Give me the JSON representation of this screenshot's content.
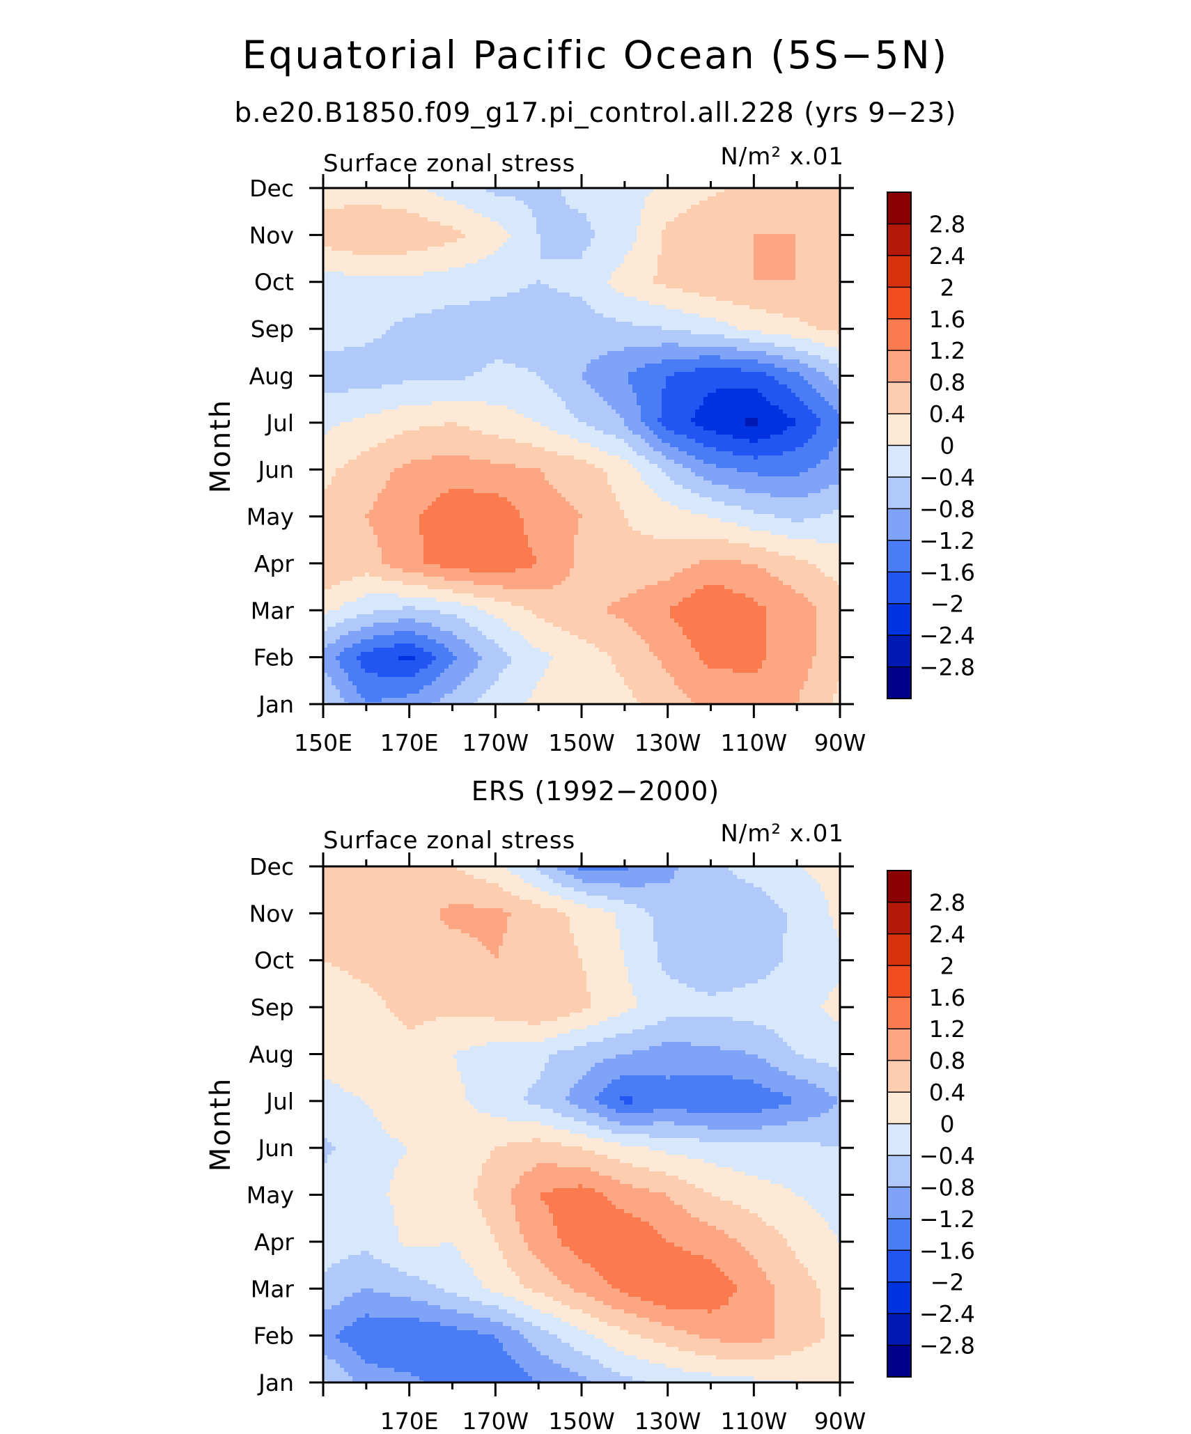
{
  "title": "Equatorial Pacific Ocean (5S−5N)",
  "subtitle": "b.e20.B1850.f09_g17.pi_control.all.228 (yrs 9−23)",
  "colorbar": {
    "levels": [
      -2.8,
      -2.4,
      -2,
      -1.6,
      -1.2,
      -0.8,
      -0.4,
      0,
      0.4,
      0.8,
      1.2,
      1.6,
      2,
      2.4,
      2.8
    ],
    "labels": [
      "2.8",
      "2.4",
      "2",
      "1.6",
      "1.2",
      "0.8",
      "0.4",
      "0",
      "−0.4",
      "−0.8",
      "−1.2",
      "−1.6",
      "−2",
      "−2.4",
      "−2.8"
    ],
    "colors": [
      "#00008b",
      "#0019b2",
      "#0033e0",
      "#2156f2",
      "#4a7cf5",
      "#7fa3f7",
      "#b0c9fa",
      "#d8e8fc",
      "#fee8d6",
      "#fecdb0",
      "#fda683",
      "#fb7a4e",
      "#f24d20",
      "#d7300c",
      "#b3180a",
      "#8b0000"
    ]
  },
  "chart_data": [
    {
      "type": "heatmap",
      "panel_title": "Surface zonal stress",
      "units": "N/m² x.01",
      "ylabel": "Month",
      "x_labels": [
        "150E",
        "170E",
        "170W",
        "150W",
        "130W",
        "110W",
        "90W"
      ],
      "y_labels": [
        "Jan",
        "Feb",
        "Mar",
        "Apr",
        "May",
        "Jun",
        "Jul",
        "Aug",
        "Sep",
        "Oct",
        "Nov",
        "Dec"
      ],
      "x_lon": [
        150,
        160,
        170,
        180,
        190,
        200,
        210,
        220,
        230,
        240,
        250,
        260,
        270
      ],
      "values": [
        [
          -0.3,
          -1.2,
          -1.0,
          -0.6,
          -0.2,
          0.1,
          0.2,
          0.3,
          0.6,
          0.9,
          1.0,
          0.8,
          0.3
        ],
        [
          -1.0,
          -1.8,
          -2.1,
          -1.3,
          -0.6,
          -0.1,
          0.2,
          0.5,
          0.9,
          1.3,
          1.3,
          1.0,
          0.5
        ],
        [
          0.1,
          -0.3,
          -0.5,
          -0.3,
          0.1,
          0.5,
          0.7,
          0.9,
          1.2,
          1.6,
          1.3,
          1.0,
          0.6
        ],
        [
          0.8,
          0.6,
          1.1,
          1.4,
          1.5,
          1.2,
          0.7,
          0.5,
          0.6,
          0.9,
          0.8,
          0.5,
          0.2
        ],
        [
          0.5,
          0.8,
          1.1,
          1.5,
          1.5,
          1.0,
          0.8,
          0.4,
          0.2,
          0.0,
          -0.3,
          -0.5,
          -0.3
        ],
        [
          0.3,
          0.6,
          0.9,
          1.0,
          0.9,
          0.8,
          0.6,
          0.2,
          -0.5,
          -1.1,
          -1.3,
          -1.3,
          -1.0
        ],
        [
          -0.1,
          0.1,
          0.3,
          0.4,
          0.2,
          0.0,
          -0.4,
          -0.8,
          -1.8,
          -2.2,
          -2.5,
          -2.0,
          -1.3
        ],
        [
          -0.6,
          -0.6,
          -0.5,
          -0.5,
          -0.3,
          -0.4,
          -0.8,
          -1.2,
          -1.6,
          -1.9,
          -1.8,
          -1.3,
          -0.6
        ],
        [
          -0.2,
          -0.3,
          -0.5,
          -0.6,
          -0.6,
          -0.6,
          -0.6,
          -0.5,
          -0.4,
          -0.2,
          0.1,
          0.3,
          0.5
        ],
        [
          -0.2,
          -0.1,
          -0.1,
          -0.2,
          -0.3,
          -0.4,
          -0.3,
          0.2,
          0.5,
          0.7,
          0.8,
          0.8,
          0.7
        ],
        [
          0.6,
          0.8,
          0.7,
          0.5,
          0.2,
          -0.4,
          -0.5,
          -0.2,
          0.5,
          0.8,
          0.8,
          0.8,
          0.8
        ],
        [
          0.2,
          0.2,
          0.1,
          -0.2,
          -0.5,
          -0.5,
          -0.3,
          -0.2,
          0.1,
          0.3,
          0.6,
          0.6,
          0.6
        ]
      ],
      "value_range": [
        -3,
        3
      ]
    },
    {
      "type": "heatmap",
      "chart_title": "ERS (1992−2000)",
      "panel_title": "Surface zonal stress",
      "units": "N/m² x.01",
      "ylabel": "Month",
      "x_labels": [
        "170E",
        "170W",
        "150W",
        "130W",
        "110W",
        "90W"
      ],
      "y_labels": [
        "Jan",
        "Feb",
        "Mar",
        "Apr",
        "May",
        "Jun",
        "Jul",
        "Aug",
        "Sep",
        "Oct",
        "Nov",
        "Dec"
      ],
      "x_lon": [
        150,
        160,
        170,
        180,
        190,
        200,
        210,
        220,
        230,
        240,
        250,
        260,
        270
      ],
      "values": [
        [
          -0.3,
          -1.0,
          -1.1,
          -1.4,
          -1.6,
          -1.2,
          -0.9,
          -0.5,
          -0.3,
          -0.2,
          -0.1,
          0.0,
          0.1
        ],
        [
          -1.1,
          -1.5,
          -1.6,
          -1.4,
          -1.2,
          -0.6,
          -0.1,
          0.3,
          0.6,
          0.9,
          1.0,
          0.6,
          0.3
        ],
        [
          -0.5,
          -0.8,
          -0.6,
          -0.3,
          0.1,
          0.5,
          0.9,
          1.3,
          1.6,
          1.5,
          1.0,
          0.6,
          0.2
        ],
        [
          -0.2,
          -0.3,
          0.1,
          0.0,
          0.4,
          1.0,
          1.4,
          1.6,
          1.2,
          1.0,
          0.7,
          0.3,
          0.0
        ],
        [
          -0.2,
          -0.1,
          0.1,
          0.2,
          0.6,
          1.2,
          1.4,
          1.0,
          0.8,
          0.4,
          0.2,
          0.0,
          -0.2
        ],
        [
          -0.5,
          -0.1,
          0.0,
          0.2,
          0.4,
          0.6,
          0.4,
          0.1,
          -0.1,
          -0.2,
          -0.3,
          -0.3,
          -0.4
        ],
        [
          -0.1,
          0.0,
          0.2,
          0.1,
          -0.2,
          -0.5,
          -1.0,
          -1.7,
          -1.4,
          -1.6,
          -1.5,
          -1.2,
          -0.8
        ],
        [
          0.1,
          0.2,
          0.3,
          0.0,
          -0.2,
          -0.3,
          -0.6,
          -0.8,
          -1.0,
          -0.9,
          -0.8,
          -0.4,
          -0.2
        ],
        [
          0.2,
          0.3,
          0.5,
          0.5,
          0.6,
          0.8,
          0.5,
          0.1,
          -0.2,
          -0.3,
          -0.2,
          -0.1,
          0.1
        ],
        [
          0.4,
          0.5,
          0.5,
          0.6,
          0.8,
          0.6,
          0.4,
          0.0,
          -0.5,
          -0.7,
          -0.6,
          -0.3,
          -0.1
        ],
        [
          0.4,
          0.6,
          0.6,
          0.9,
          0.9,
          0.6,
          0.3,
          -0.1,
          -0.6,
          -0.8,
          -0.7,
          -0.3,
          0.1
        ],
        [
          0.4,
          0.6,
          0.5,
          0.4,
          0.1,
          -0.5,
          -1.3,
          -1.3,
          -0.9,
          -0.5,
          -0.2,
          0.0,
          0.1
        ]
      ],
      "value_range": [
        -3,
        3
      ]
    }
  ]
}
